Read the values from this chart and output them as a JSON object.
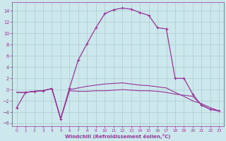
{
  "bg_color": "#cce8ec",
  "grid_color": "#aacccc",
  "line_color": "#993399",
  "xlabel": "Windchill (Refroidissement éolien,°C)",
  "xlim": [
    -0.5,
    23.5
  ],
  "ylim": [
    -6.5,
    15.5
  ],
  "xticks": [
    0,
    1,
    2,
    3,
    4,
    5,
    6,
    7,
    8,
    9,
    10,
    11,
    12,
    13,
    14,
    15,
    16,
    17,
    18,
    19,
    20,
    21,
    22,
    23
  ],
  "yticks": [
    -6,
    -4,
    -2,
    0,
    2,
    4,
    6,
    8,
    10,
    12,
    14
  ],
  "curve1_x": [
    0,
    1,
    2,
    3,
    4,
    5,
    6,
    7,
    8,
    9,
    10,
    11,
    12,
    13,
    14,
    15,
    16,
    17,
    18,
    19,
    20,
    21,
    22,
    23
  ],
  "curve1_y": [
    -3.2,
    -0.5,
    -0.3,
    -0.2,
    0.2,
    -5.2,
    0.3,
    5.3,
    8.2,
    11.0,
    13.5,
    14.2,
    14.5,
    14.3,
    13.7,
    13.2,
    11.0,
    10.8,
    2.0,
    2.0,
    -0.8,
    -2.8,
    -3.5,
    -3.8
  ],
  "curve2_x": [
    0,
    1,
    2,
    3,
    4,
    5,
    6,
    7,
    8,
    9,
    10,
    11,
    12,
    13,
    14,
    15,
    16,
    17,
    18,
    19,
    20,
    21,
    22,
    23
  ],
  "curve2_y": [
    -0.5,
    -0.5,
    -0.3,
    -0.2,
    0.2,
    -5.2,
    -0.2,
    -0.3,
    -0.3,
    -0.2,
    -0.2,
    -0.1,
    0.0,
    -0.1,
    -0.2,
    -0.2,
    -0.3,
    -0.5,
    -0.8,
    -1.0,
    -1.2,
    -2.7,
    -3.5,
    -3.8
  ],
  "curve3_x": [
    0,
    1,
    2,
    3,
    4,
    5,
    6,
    7,
    8,
    9,
    10,
    11,
    12,
    13,
    14,
    15,
    16,
    17,
    18,
    19,
    20,
    21,
    22,
    23
  ],
  "curve3_y": [
    -0.5,
    -0.5,
    -0.3,
    -0.2,
    0.2,
    -5.2,
    0.0,
    0.3,
    0.6,
    0.8,
    1.0,
    1.1,
    1.2,
    1.0,
    0.8,
    0.7,
    0.5,
    0.3,
    -0.5,
    -1.2,
    -2.0,
    -2.5,
    -3.2,
    -3.8
  ]
}
